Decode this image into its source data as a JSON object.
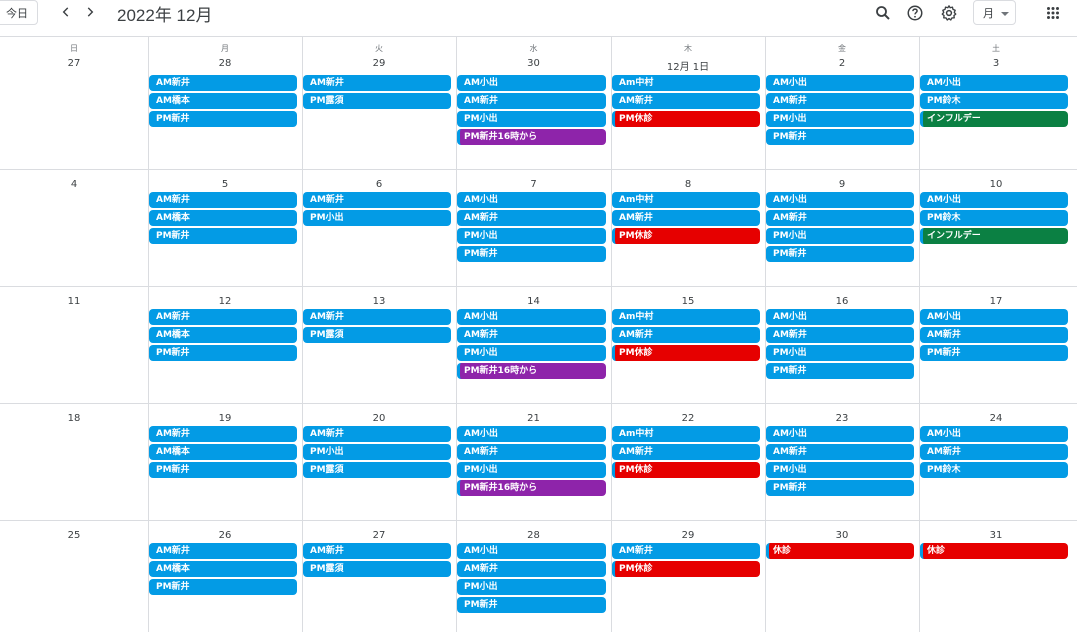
{
  "header": {
    "today_label": "今日",
    "title": "2022年 12月",
    "view_label": "月",
    "icons": [
      "chevron-left-icon",
      "chevron-right-icon",
      "search-icon",
      "help-icon",
      "gear-icon",
      "apps-grid-icon"
    ]
  },
  "colors": {
    "blue": "#039be5",
    "red": "#e60000",
    "purple": "#8e24aa",
    "green": "#0b8043"
  },
  "weekdays": [
    "日",
    "月",
    "火",
    "水",
    "木",
    "金",
    "土"
  ],
  "weeks": [
    {
      "days": [
        {
          "label": "27",
          "events": []
        },
        {
          "label": "28",
          "events": [
            {
              "text": "AM新井",
              "color": "blue"
            },
            {
              "text": "AM橋本",
              "color": "blue"
            },
            {
              "text": "PM新井",
              "color": "blue"
            }
          ]
        },
        {
          "label": "29",
          "events": [
            {
              "text": "AM新井",
              "color": "blue"
            },
            {
              "text": "PM露須",
              "color": "blue"
            }
          ]
        },
        {
          "label": "30",
          "events": [
            {
              "text": "AM小出",
              "color": "blue"
            },
            {
              "text": "AM新井",
              "color": "blue"
            },
            {
              "text": "PM小出",
              "color": "blue"
            },
            {
              "text": "PM新井16時から",
              "color": "purple"
            }
          ]
        },
        {
          "label": "12月 1日",
          "events": [
            {
              "text": "Am中村",
              "color": "blue"
            },
            {
              "text": "AM新井",
              "color": "blue"
            },
            {
              "text": "PM休診",
              "color": "red"
            }
          ]
        },
        {
          "label": "2",
          "events": [
            {
              "text": "AM小出",
              "color": "blue"
            },
            {
              "text": "AM新井",
              "color": "blue"
            },
            {
              "text": "PM小出",
              "color": "blue"
            },
            {
              "text": "PM新井",
              "color": "blue"
            }
          ]
        },
        {
          "label": "3",
          "events": [
            {
              "text": "AM小出",
              "color": "blue"
            },
            {
              "text": "PM鈴木",
              "color": "blue"
            },
            {
              "text": "インフルデー",
              "color": "green"
            }
          ]
        }
      ]
    },
    {
      "days": [
        {
          "label": "4",
          "events": []
        },
        {
          "label": "5",
          "events": [
            {
              "text": "AM新井",
              "color": "blue"
            },
            {
              "text": "AM橋本",
              "color": "blue"
            },
            {
              "text": "PM新井",
              "color": "blue"
            }
          ]
        },
        {
          "label": "6",
          "events": [
            {
              "text": "AM新井",
              "color": "blue"
            },
            {
              "text": "PM小出",
              "color": "blue"
            }
          ]
        },
        {
          "label": "7",
          "events": [
            {
              "text": "AM小出",
              "color": "blue"
            },
            {
              "text": "AM新井",
              "color": "blue"
            },
            {
              "text": "PM小出",
              "color": "blue"
            },
            {
              "text": "PM新井",
              "color": "blue"
            }
          ]
        },
        {
          "label": "8",
          "events": [
            {
              "text": "Am中村",
              "color": "blue"
            },
            {
              "text": "AM新井",
              "color": "blue"
            },
            {
              "text": "PM休診",
              "color": "red"
            }
          ]
        },
        {
          "label": "9",
          "events": [
            {
              "text": "AM小出",
              "color": "blue"
            },
            {
              "text": "AM新井",
              "color": "blue"
            },
            {
              "text": "PM小出",
              "color": "blue"
            },
            {
              "text": "PM新井",
              "color": "blue"
            }
          ]
        },
        {
          "label": "10",
          "events": [
            {
              "text": "AM小出",
              "color": "blue"
            },
            {
              "text": "PM鈴木",
              "color": "blue"
            },
            {
              "text": "インフルデー",
              "color": "green"
            }
          ]
        }
      ]
    },
    {
      "days": [
        {
          "label": "11",
          "events": []
        },
        {
          "label": "12",
          "events": [
            {
              "text": "AM新井",
              "color": "blue"
            },
            {
              "text": "AM橋本",
              "color": "blue"
            },
            {
              "text": "PM新井",
              "color": "blue"
            }
          ]
        },
        {
          "label": "13",
          "events": [
            {
              "text": "AM新井",
              "color": "blue"
            },
            {
              "text": "PM露須",
              "color": "blue"
            }
          ]
        },
        {
          "label": "14",
          "events": [
            {
              "text": "AM小出",
              "color": "blue"
            },
            {
              "text": "AM新井",
              "color": "blue"
            },
            {
              "text": "PM小出",
              "color": "blue"
            },
            {
              "text": "PM新井16時から",
              "color": "purple"
            }
          ]
        },
        {
          "label": "15",
          "events": [
            {
              "text": "Am中村",
              "color": "blue"
            },
            {
              "text": "AM新井",
              "color": "blue"
            },
            {
              "text": "PM休診",
              "color": "red"
            }
          ]
        },
        {
          "label": "16",
          "events": [
            {
              "text": "AM小出",
              "color": "blue"
            },
            {
              "text": "AM新井",
              "color": "blue"
            },
            {
              "text": "PM小出",
              "color": "blue"
            },
            {
              "text": "PM新井",
              "color": "blue"
            }
          ]
        },
        {
          "label": "17",
          "events": [
            {
              "text": "AM小出",
              "color": "blue"
            },
            {
              "text": "AM新井",
              "color": "blue"
            },
            {
              "text": "PM新井",
              "color": "blue"
            }
          ]
        }
      ]
    },
    {
      "days": [
        {
          "label": "18",
          "events": []
        },
        {
          "label": "19",
          "events": [
            {
              "text": "AM新井",
              "color": "blue"
            },
            {
              "text": "AM橋本",
              "color": "blue"
            },
            {
              "text": "PM新井",
              "color": "blue"
            }
          ]
        },
        {
          "label": "20",
          "events": [
            {
              "text": "AM新井",
              "color": "blue"
            },
            {
              "text": "PM小出",
              "color": "blue"
            },
            {
              "text": "PM露須",
              "color": "blue"
            }
          ]
        },
        {
          "label": "21",
          "events": [
            {
              "text": "AM小出",
              "color": "blue"
            },
            {
              "text": "AM新井",
              "color": "blue"
            },
            {
              "text": "PM小出",
              "color": "blue"
            },
            {
              "text": "PM新井16時から",
              "color": "purple"
            }
          ]
        },
        {
          "label": "22",
          "events": [
            {
              "text": "Am中村",
              "color": "blue"
            },
            {
              "text": "AM新井",
              "color": "blue"
            },
            {
              "text": "PM休診",
              "color": "red"
            }
          ]
        },
        {
          "label": "23",
          "events": [
            {
              "text": "AM小出",
              "color": "blue"
            },
            {
              "text": "AM新井",
              "color": "blue"
            },
            {
              "text": "PM小出",
              "color": "blue"
            },
            {
              "text": "PM新井",
              "color": "blue"
            }
          ]
        },
        {
          "label": "24",
          "events": [
            {
              "text": "AM小出",
              "color": "blue"
            },
            {
              "text": "AM新井",
              "color": "blue"
            },
            {
              "text": "PM鈴木",
              "color": "blue"
            }
          ]
        }
      ]
    },
    {
      "days": [
        {
          "label": "25",
          "events": []
        },
        {
          "label": "26",
          "events": [
            {
              "text": "AM新井",
              "color": "blue"
            },
            {
              "text": "AM橋本",
              "color": "blue"
            },
            {
              "text": "PM新井",
              "color": "blue"
            }
          ]
        },
        {
          "label": "27",
          "events": [
            {
              "text": "AM新井",
              "color": "blue"
            },
            {
              "text": "PM露須",
              "color": "blue"
            }
          ]
        },
        {
          "label": "28",
          "events": [
            {
              "text": "AM小出",
              "color": "blue"
            },
            {
              "text": "AM新井",
              "color": "blue"
            },
            {
              "text": "PM小出",
              "color": "blue"
            },
            {
              "text": "PM新井",
              "color": "blue"
            }
          ]
        },
        {
          "label": "29",
          "events": [
            {
              "text": "AM新井",
              "color": "blue"
            },
            {
              "text": "PM休診",
              "color": "red"
            }
          ]
        },
        {
          "label": "30",
          "events": [
            {
              "text": "休診",
              "color": "red"
            }
          ]
        },
        {
          "label": "31",
          "events": [
            {
              "text": "休診",
              "color": "red"
            }
          ]
        }
      ]
    }
  ]
}
